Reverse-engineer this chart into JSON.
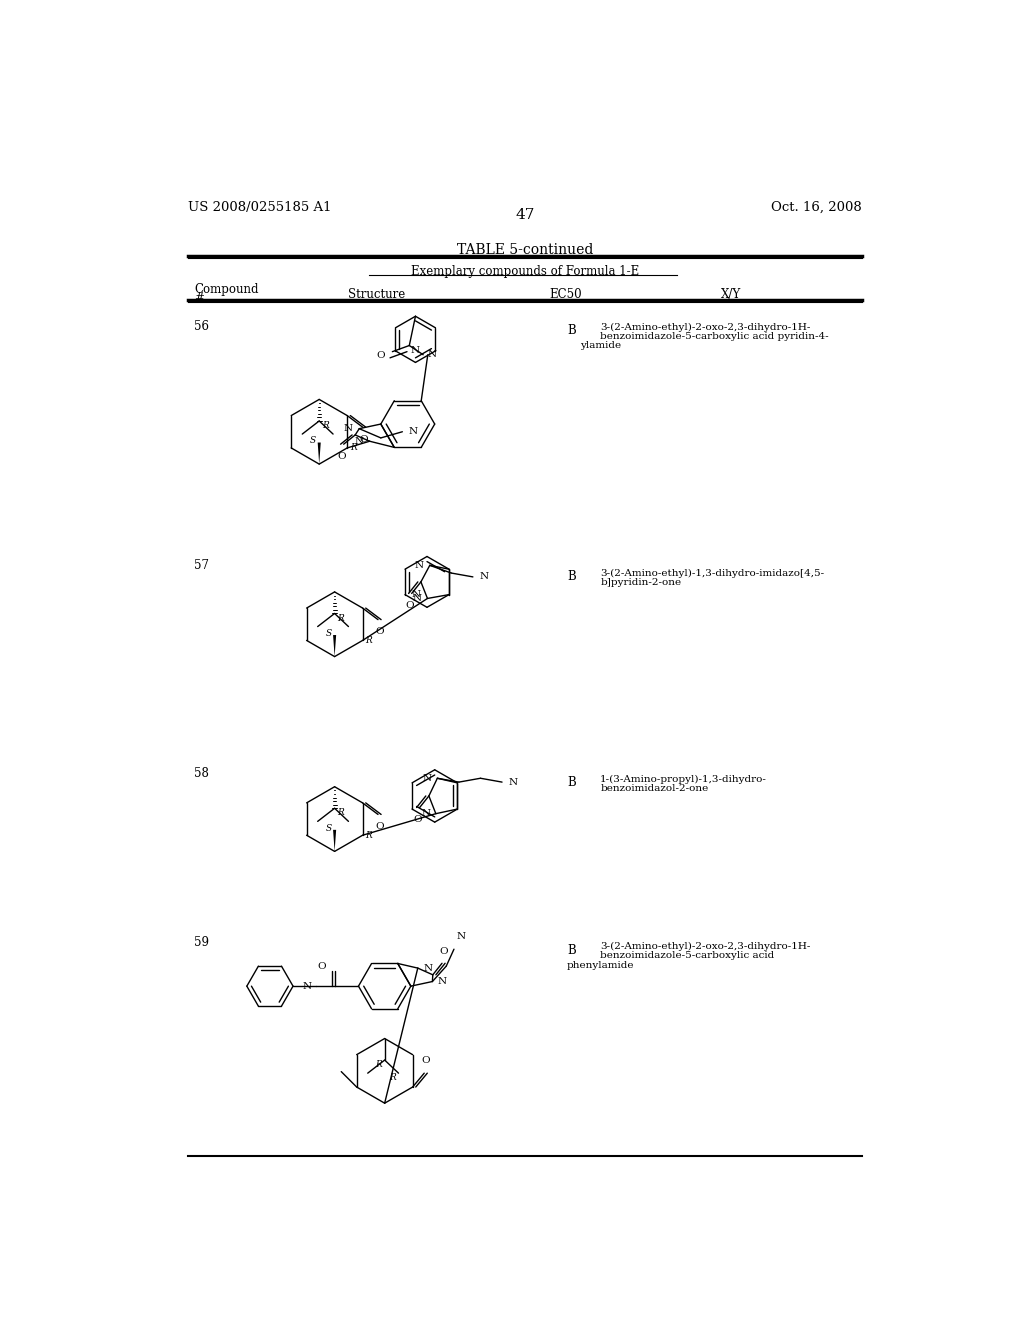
{
  "page_number": "47",
  "patent_number": "US 2008/0255185 A1",
  "patent_date": "Oct. 16, 2008",
  "table_title": "TABLE 5-continued",
  "table_subtitle": "Exemplary compounds of Formula 1-E",
  "compounds": [
    {
      "number": "56",
      "ec50": "B",
      "xy_line1": "3-(2-Amino-ethyl)-2-oxo-2,3-dihydro-1H-",
      "xy_line2": "benzoimidazole-5-carboxylic acid pyridin-4-",
      "xy_line3": "ylamide"
    },
    {
      "number": "57",
      "ec50": "B",
      "xy_line1": "3-(2-Amino-ethyl)-1,3-dihydro-imidazo[4,5-",
      "xy_line2": "b]pyridin-2-one",
      "xy_line3": ""
    },
    {
      "number": "58",
      "ec50": "B",
      "xy_line1": "1-(3-Amino-propyl)-1,3-dihydro-",
      "xy_line2": "benzoimidazol-2-one",
      "xy_line3": ""
    },
    {
      "number": "59",
      "ec50": "B",
      "xy_line1": "3-(2-Amino-ethyl)-2-oxo-2,3-dihydro-1H-",
      "xy_line2": "benzoimidazole-5-carboxylic acid",
      "xy_line3": "phenylamide"
    }
  ],
  "bg_color": "#ffffff",
  "text_color": "#000000"
}
